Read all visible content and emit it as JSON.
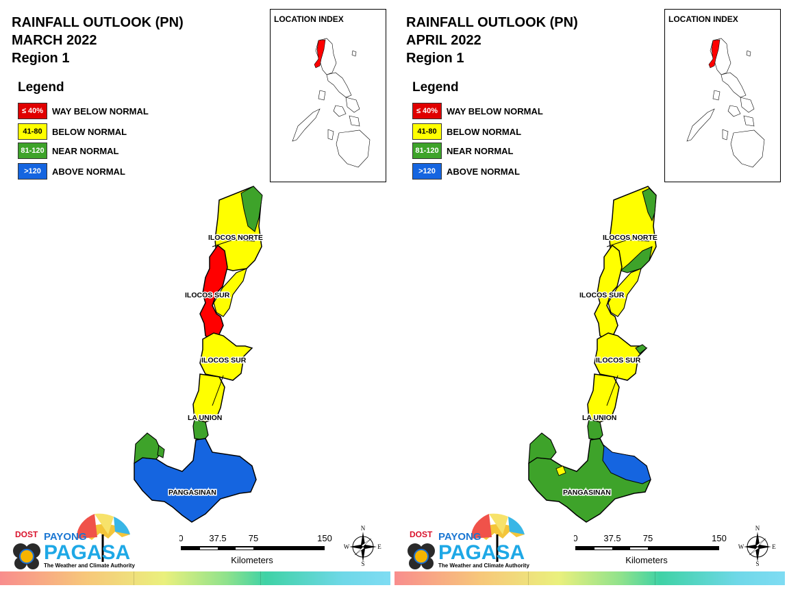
{
  "colors": {
    "way_below": "#ff0000",
    "below": "#ffff00",
    "near": "#3ea32a",
    "above": "#1565e0"
  },
  "legend": {
    "title": "Legend",
    "items": [
      {
        "range": "≤ 40%",
        "label": "WAY BELOW NORMAL",
        "color": "#e00000",
        "text_color": "#ffffff"
      },
      {
        "range": "41-80",
        "label": "BELOW NORMAL",
        "color": "#ffff00",
        "text_color": "#000000"
      },
      {
        "range": "81-120",
        "label": "NEAR NORMAL",
        "color": "#3ea32a",
        "text_color": "#ffffff"
      },
      {
        "range": ">120",
        "label": "ABOVE NORMAL",
        "color": "#1565e0",
        "text_color": "#ffffff"
      }
    ]
  },
  "inset_title": "LOCATION INDEX",
  "province_labels": [
    "ILOCOS NORTE",
    "ILOCOS SUR",
    "ILOCOS SUR",
    "LA UNION",
    "PANGASINAN"
  ],
  "scale": {
    "ticks": [
      "0",
      "37.5",
      "75",
      "150"
    ],
    "unit": "Kilometers"
  },
  "compass": {
    "n": "N",
    "s": "S",
    "e": "E",
    "w": "W"
  },
  "logo": {
    "dost": "DOST",
    "payong": "PAYONG",
    "pagasa": "PAGASA",
    "tagline": "The Weather and Climate Authority"
  },
  "panels": [
    {
      "title_lines": [
        "RAINFALL OUTLOOK (PN)",
        "MARCH 2022",
        "Region 1"
      ],
      "regions": {
        "ilocos_norte": "below",
        "ne_strip": "near",
        "coast_band": "way_below",
        "ilocos_sur_south": "below",
        "la_union_north": "below",
        "la_union_south": "near",
        "pangasinan_west": "near",
        "pangasinan": "above"
      }
    },
    {
      "title_lines": [
        "RAINFALL OUTLOOK (PN)",
        "APRIL 2022",
        "Region 1"
      ],
      "regions": {
        "ilocos_norte": "below",
        "ne_strip": "near",
        "coast_band": "below",
        "ilocos_sur_south": "below",
        "la_union_north": "below",
        "la_union_south": "near",
        "pangasinan_west": "near",
        "pangasinan": "near",
        "pangasinan_east_blob": "above",
        "pangasinan_yellow_dot": "below"
      }
    }
  ]
}
